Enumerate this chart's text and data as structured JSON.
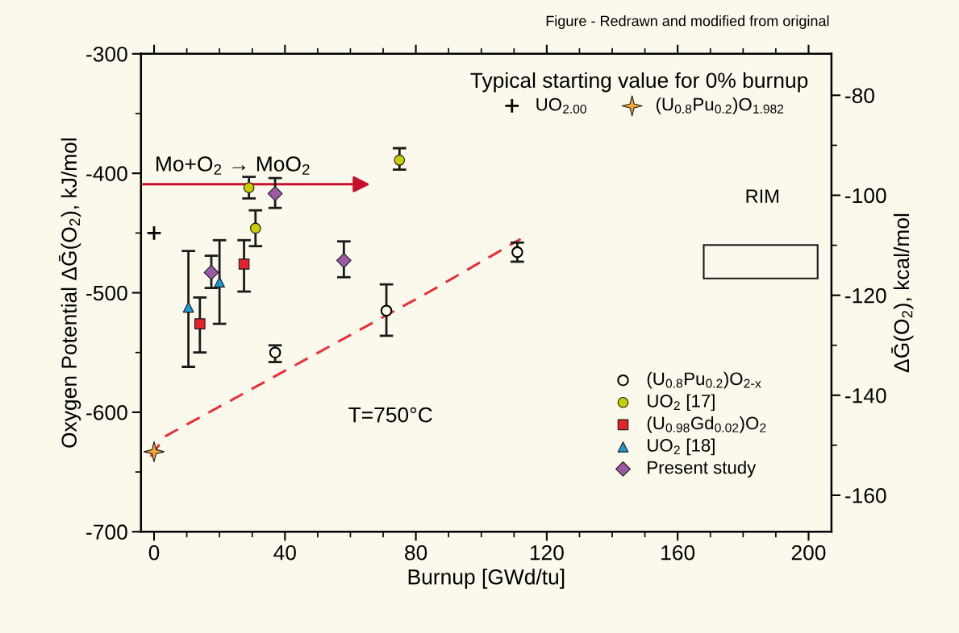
{
  "chart_data": {
    "type": "scatter",
    "xlabel": "Burnup [GWd/tu]",
    "ylabel": "Oxygen Potential ΔḠ(O$_{2}$), kJ/mol",
    "y2label": "ΔḠ(O$_{2}$), kcal/mol",
    "legend_title": "Typical starting value for 0% burnup",
    "legend": "right",
    "xlim": [
      -4,
      207
    ],
    "xticks": [
      0,
      40,
      80,
      120,
      160,
      200
    ],
    "ylim": [
      -700,
      -300
    ],
    "yticks": [
      -300,
      -400,
      -500,
      -600,
      -700
    ],
    "y2lim": [
      -167.3,
      -71.7
    ],
    "y2ticks": [
      -80,
      -100,
      -120,
      -140,
      -160
    ],
    "series": [
      {
        "name": "UO$_{2.00}$",
        "marker": "cross",
        "color": "#000000",
        "x": [
          0
        ],
        "values": [
          -450
        ]
      },
      {
        "name": "(U$_{0.8}$Pu$_{0.2}$)O$_{1.982}$",
        "marker": "star",
        "color": "#f5a93a",
        "x": [
          0
        ],
        "values": [
          -633
        ]
      },
      {
        "name": "(U$_{0.8}$Pu$_{0.2}$)O$_{2-x}$",
        "marker": "circle",
        "color": "#fbf9ec",
        "x": [
          37,
          71,
          111
        ],
        "values": [
          -550,
          -515,
          -466
        ],
        "errors": [
          [
            -558,
            -544
          ],
          [
            -536,
            -493
          ],
          [
            -474,
            -458
          ]
        ]
      },
      {
        "name": "UO$_{2}$ [17]",
        "marker": "circle",
        "color": "#c8cf00",
        "x": [
          29,
          31,
          75
        ],
        "values": [
          -412,
          -446,
          -389
        ],
        "errors": [
          [
            -421,
            -403
          ],
          [
            -461,
            -431
          ],
          [
            -397,
            -379
          ]
        ]
      },
      {
        "name": "(U$_{0.98}$Gd$_{0.02}$)O$_{2}$",
        "marker": "square",
        "color": "#e3242b",
        "x": [
          14,
          27.5
        ],
        "values": [
          -526,
          -476
        ],
        "errors": [
          [
            -550,
            -504
          ],
          [
            -499,
            -456
          ]
        ]
      },
      {
        "name": "UO$_{2}$ [18]",
        "marker": "triangle",
        "color": "#1e9ad6",
        "x": [
          10.5,
          20
        ],
        "values": [
          -512,
          -491
        ],
        "errors": [
          [
            -562,
            -465
          ],
          [
            -526,
            -456
          ]
        ]
      },
      {
        "name": "Present study",
        "marker": "diamond",
        "color": "#9b59a6",
        "x": [
          17.5,
          37,
          58
        ],
        "values": [
          -483,
          -417,
          -473
        ],
        "errors": [
          [
            -496,
            -469
          ],
          [
            -429,
            -404
          ],
          [
            -487,
            -457
          ]
        ]
      },
      {
        "type": "line",
        "line_style": "dashed",
        "marker": "none",
        "color": "#e8303a",
        "x": [
          -1,
          3.5,
          83.6,
          112
        ],
        "values": [
          -637,
          -620,
          -500,
          -455
        ]
      }
    ],
    "annotations": [
      "Figure - Redrawn and modified from original",
      "T=750°C",
      "RIM",
      "Mo+O$_{2}$ → MoO$_{2}$"
    ]
  }
}
